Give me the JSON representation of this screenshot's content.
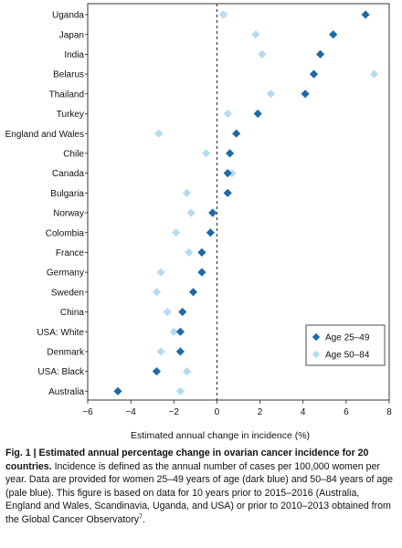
{
  "chart_data": {
    "type": "scatter",
    "xlabel": "Estimated annual change in incidence (%)",
    "xlim": [
      -6,
      8
    ],
    "xticks": [
      -6,
      -4,
      -2,
      0,
      2,
      4,
      6,
      8
    ],
    "xtick_labels": [
      "−6",
      "−4",
      "−2",
      "0",
      "2",
      "4",
      "6",
      "8"
    ],
    "reference_line_x": 0,
    "grid": false,
    "legend_position": "bottom-right",
    "categories": [
      "Uganda",
      "Japan",
      "India",
      "Belarus",
      "Thailand",
      "Turkey",
      "England and Wales",
      "Chile",
      "Canada",
      "Bulgaria",
      "Norway",
      "Colombia",
      "France",
      "Germany",
      "Sweden",
      "China",
      "USA: White",
      "Denmark",
      "USA: Black",
      "Australia"
    ],
    "series": [
      {
        "name": "Age 25–49",
        "color": "#1f6aa5",
        "marker": "diamond",
        "values": [
          6.9,
          5.4,
          4.8,
          4.5,
          4.1,
          1.9,
          0.9,
          0.6,
          0.5,
          0.5,
          -0.2,
          -0.3,
          -0.7,
          -0.7,
          -1.1,
          -1.6,
          -1.7,
          -1.7,
          -2.8,
          -4.6
        ]
      },
      {
        "name": "Age 50–84",
        "color": "#b3dcf2",
        "marker": "diamond",
        "values": [
          0.3,
          1.8,
          2.1,
          7.3,
          2.5,
          0.5,
          -2.7,
          -0.5,
          0.7,
          -1.4,
          -1.2,
          -1.9,
          -1.3,
          -2.6,
          -2.8,
          -2.3,
          -2.0,
          -2.6,
          -1.4,
          -1.7
        ]
      }
    ]
  },
  "caption": {
    "title": "Fig. 1 | Estimated annual percentage change in ovarian cancer incidence for 20 countries.",
    "body_before_ref": " Incidence is defined as the annual number of cases per 100,000 women per year. Data are provided for women 25–49 years of age (dark blue) and 50–84 years of age (pale blue). This figure is based on data for 10 years prior to 2015–2016 (Australia, England and Wales, Scandinavia, Uganda, and USA) or prior to 2010–2013 obtained from the Global Cancer Observatory",
    "ref": "7",
    "body_after_ref": "."
  }
}
